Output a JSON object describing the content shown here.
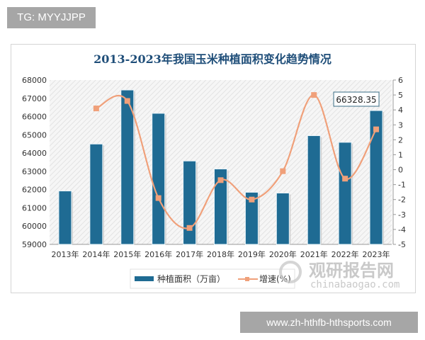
{
  "badges": {
    "top": "TG: MYYJJPP",
    "bottom": "www.zh-hthfb-hthsports.com"
  },
  "watermark": {
    "cn": "观研报告网",
    "en": "chinabaogao.com"
  },
  "colors": {
    "bar": "#1f6b93",
    "line": "#f0a07a",
    "title": "#1f4e79"
  },
  "chart_data": {
    "type": "bar",
    "title": "2013-2023年我国玉米种植面积变化趋势情况",
    "categories": [
      "2013年",
      "2014年",
      "2015年",
      "2016年",
      "2017年",
      "2018年",
      "2019年",
      "2020年",
      "2021年",
      "2022年",
      "2023年"
    ],
    "series": [
      {
        "name": "种植面积（万亩）",
        "type": "bar",
        "axis": "left",
        "values": [
          61926,
          64497,
          67456,
          66178,
          63568,
          63130,
          61854,
          61812,
          64954,
          64590,
          66328.35
        ]
      },
      {
        "name": "增速(%)",
        "type": "line",
        "axis": "right",
        "values": [
          null,
          4.1,
          4.6,
          -1.9,
          -3.9,
          -0.7,
          -2.0,
          -0.1,
          5.0,
          -0.6,
          2.7
        ]
      }
    ],
    "left_axis": {
      "ylim": [
        59000,
        68000
      ],
      "ticks": [
        68000,
        67000,
        66000,
        65000,
        64000,
        63000,
        62000,
        61000,
        60000,
        59000
      ]
    },
    "right_axis": {
      "ylim": [
        -5,
        6
      ],
      "ticks": [
        6,
        5,
        4,
        3,
        2,
        1,
        0,
        -1,
        -2,
        -3,
        -4,
        -5
      ]
    },
    "annotation": {
      "label": "66328.35",
      "category": "2023年"
    },
    "legend": {
      "position": "bottom",
      "entries": [
        "种植面积（万亩）",
        "增速(%)"
      ]
    },
    "grid": false
  }
}
